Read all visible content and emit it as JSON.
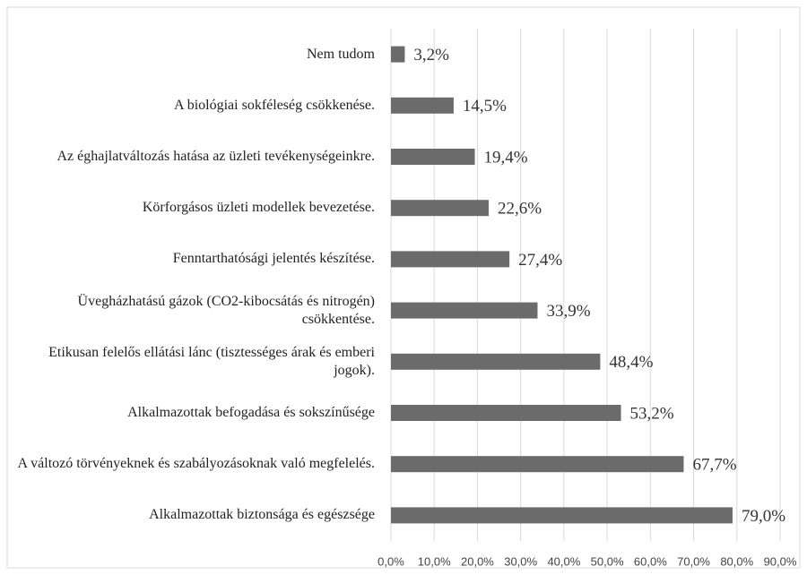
{
  "chart_data": {
    "type": "bar",
    "orientation": "horizontal",
    "categories": [
      "Nem tudom",
      "A biológiai sokféleség csökkenése.",
      "Az éghajlatváltozás hatása az üzleti tevékenységeinkre.",
      "Körforgásos üzleti modellek bevezetése.",
      "Fenntarthatósági jelentés készítése.",
      "Üvegházhatású gázok (CO2-kibocsátás és nitrogén) csökkentése.",
      "Etikusan felelős ellátási lánc (tisztességes árak és emberi jogok).",
      "Alkalmazottak befogadása és sokszínűsége",
      "A változó törvényeknek és szabályozásoknak való megfelelés.",
      "Alkalmazottak biztonsága és egészsége"
    ],
    "values": [
      3.2,
      14.5,
      19.4,
      22.6,
      27.4,
      33.9,
      48.4,
      53.2,
      67.7,
      79.0
    ],
    "value_labels": [
      "3,2%",
      "14,5%",
      "19,4%",
      "22,6%",
      "27,4%",
      "33,9%",
      "48,4%",
      "53,2%",
      "67,7%",
      "79,0%"
    ],
    "color": "#6b6b6b",
    "xlim": [
      0,
      90
    ],
    "xticks": [
      {
        "value": 0,
        "label": "0,0%"
      },
      {
        "value": 10,
        "label": "10,0%"
      },
      {
        "value": 20,
        "label": "20,0%"
      },
      {
        "value": 30,
        "label": "30,0%"
      },
      {
        "value": 40,
        "label": "40,0%"
      },
      {
        "value": 50,
        "label": "50,0%"
      },
      {
        "value": 60,
        "label": "60,0%"
      },
      {
        "value": 70,
        "label": "70,0%"
      },
      {
        "value": 80,
        "label": "80,0%"
      },
      {
        "value": 90,
        "label": "90,0%"
      }
    ],
    "grid": true
  }
}
